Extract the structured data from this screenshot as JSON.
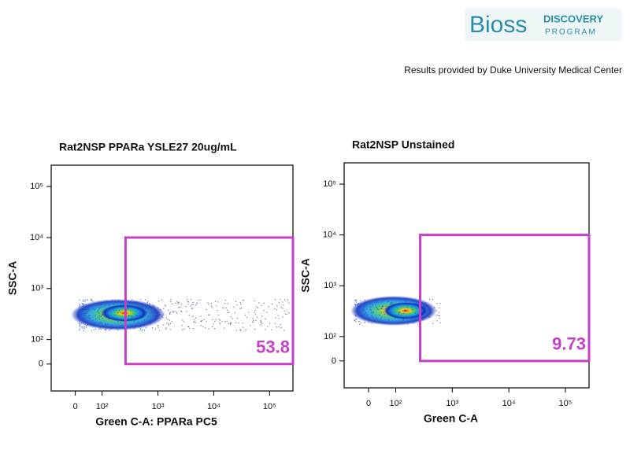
{
  "header": {
    "logo": "Bioss",
    "logo_sub": [
      "DISCOVERY",
      "PROGRAM"
    ],
    "credit": "Results provided by Duke University Medical Center"
  },
  "chart_data": [
    {
      "type": "density",
      "title": "Rat2NSP  PPARa  YSLE27 20ug/mL",
      "x_label": "Green C-A: PPARa PC5",
      "y_label": "SSC-A",
      "xlim": [
        -90,
        262144
      ],
      "ylim": [
        -110,
        262144
      ],
      "scale": "biexponential",
      "xticks": [
        0,
        {
          "value": 100,
          "label": "10²"
        },
        {
          "value": 1000,
          "label": "10³"
        },
        {
          "value": 10000,
          "label": "10⁴"
        },
        {
          "value": 100000,
          "label": "10⁵"
        }
      ],
      "yticks": [
        0,
        {
          "value": 100,
          "label": "10²"
        },
        {
          "value": 1000,
          "label": "10³"
        },
        {
          "value": 10000,
          "label": "10⁴"
        },
        {
          "value": 100000,
          "label": "10⁵"
        }
      ],
      "gate": {
        "x": [
          263,
          262144
        ],
        "y": [
          0,
          10000
        ],
        "percent": 53.8,
        "color": "#c63fc9"
      }
    },
    {
      "type": "density",
      "title": "Rat2NSP  Unstained",
      "x_label": "Green C-A",
      "y_label": "SSC-A",
      "xlim": [
        -90,
        262144
      ],
      "ylim": [
        -110,
        262144
      ],
      "scale": "biexponential",
      "xticks": [
        0,
        {
          "value": 100,
          "label": "10²"
        },
        {
          "value": 1000,
          "label": "10³"
        },
        {
          "value": 10000,
          "label": "10⁴"
        },
        {
          "value": 100000,
          "label": "10⁵"
        }
      ],
      "yticks": [
        0,
        {
          "value": 100,
          "label": "10²"
        },
        {
          "value": 1000,
          "label": "10³"
        },
        {
          "value": 10000,
          "label": "10⁴"
        },
        {
          "value": 100000,
          "label": "10⁵"
        }
      ],
      "gate": {
        "x": [
          270,
          262144
        ],
        "y": [
          0,
          10000
        ],
        "percent": 9.73,
        "color": "#c63fc9"
      }
    }
  ]
}
